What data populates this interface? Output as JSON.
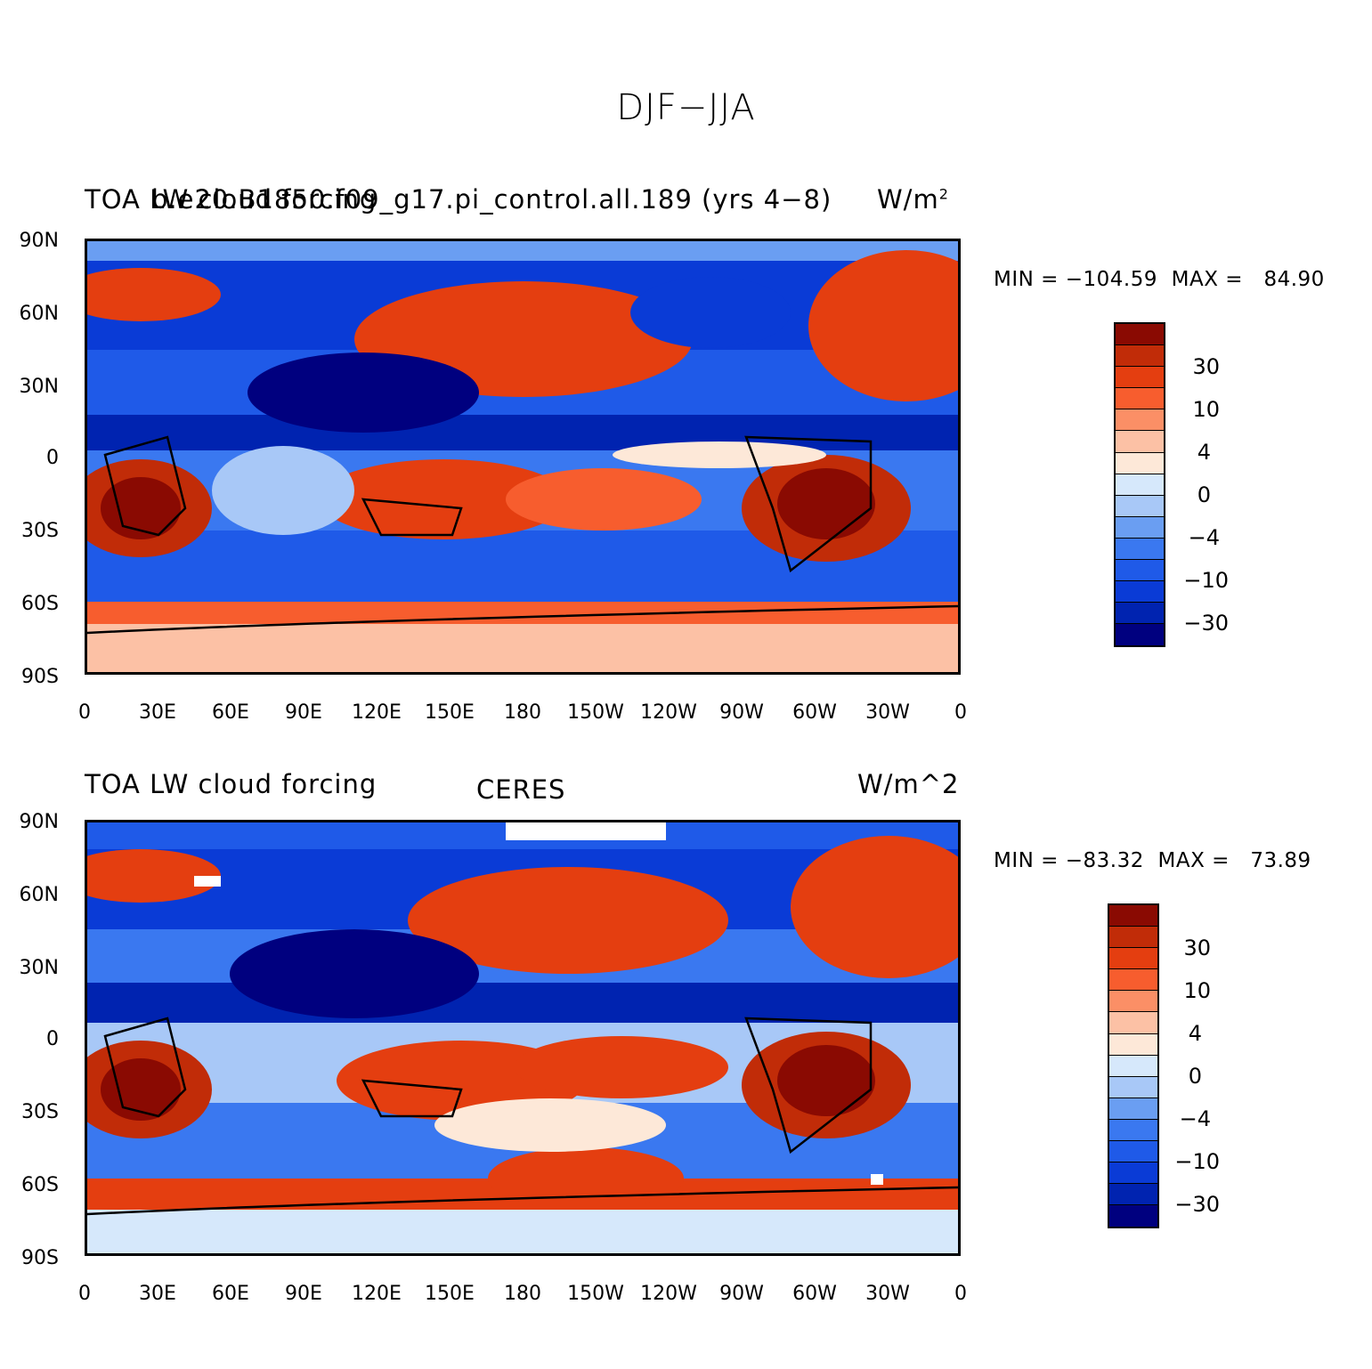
{
  "figure": {
    "title": "DJF−JJA"
  },
  "palette": [
    "#00007f",
    "#0023b0",
    "#0a3bd6",
    "#1f5ae8",
    "#3a78f0",
    "#6a9ef2",
    "#a8c8f7",
    "#d6e8fb",
    "#fde8d8",
    "#fcc1a5",
    "#fb8f66",
    "#f75d2e",
    "#e43e10",
    "#c12c08",
    "#8a0a02"
  ],
  "axes": {
    "lat_labels": [
      "90N",
      "60N",
      "30N",
      "0",
      "30S",
      "60S",
      "90S"
    ],
    "lon_labels": [
      "0",
      "30E",
      "60E",
      "90E",
      "120E",
      "150E",
      "180",
      "150W",
      "120W",
      "90W",
      "60W",
      "30W",
      "0"
    ]
  },
  "panels": [
    {
      "id": "model",
      "left_title": "TOA LW cloud forcing",
      "center_title": "b.e20.B1850.f09_g17.pi_control.all.189 (yrs 4−8)",
      "right_units": "W/m",
      "right_units_sup": "2",
      "min_label": "MIN = ",
      "min_value": "−104.59",
      "max_label": "MAX = ",
      "max_value": "84.90",
      "colorbar_labels": [
        "30",
        "10",
        "4",
        "0",
        "−4",
        "−10",
        "−30"
      ]
    },
    {
      "id": "obs",
      "left_title": "TOA LW cloud forcing",
      "center_title": "CERES",
      "right_units": "W/m^2",
      "right_units_sup": "",
      "min_label": "MIN = ",
      "min_value": "−83.32",
      "max_label": "MAX = ",
      "max_value": "73.89",
      "colorbar_labels": [
        "30",
        "10",
        "4",
        "0",
        "−4",
        "−10",
        "−30"
      ]
    }
  ]
}
